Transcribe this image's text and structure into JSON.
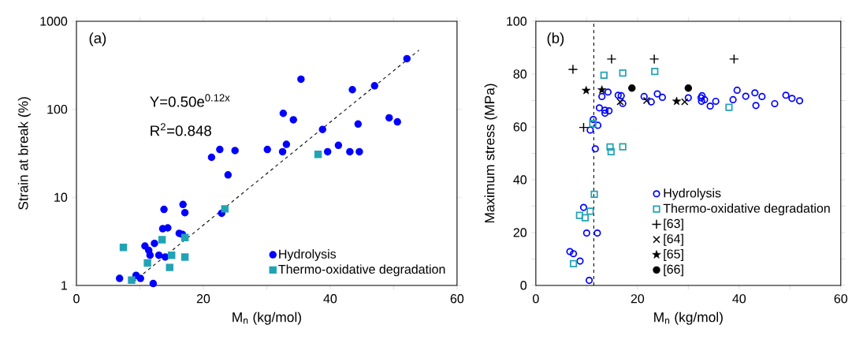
{
  "chart_data": [
    {
      "type": "scatter",
      "xlabel": "M$_{n}$ (kg/mol)",
      "ylabel": "Strain at break (%)",
      "log": "y",
      "xlim": [
        0,
        60
      ],
      "xticks": [
        0,
        {
          "value": 10,
          "label": null
        },
        20,
        {
          "value": 30,
          "label": null
        },
        40,
        {
          "value": 50,
          "label": null
        },
        60
      ],
      "ylim": [
        1,
        1000
      ],
      "yticks": [
        1,
        10,
        100,
        1000
      ],
      "legend": "bottom right",
      "annotations": [
        "(a)",
        "Y=0.50e$^{0.12x}$",
        "R$^{2}$=0.848"
      ],
      "series": [
        {
          "name": "Hydrolysis",
          "color": "#0000ff",
          "marker": "circle",
          "x": [
            52.1,
            35.4,
            43.5,
            47.0,
            32.6,
            34.2,
            49.3,
            50.6,
            44.4,
            38.8,
            33.1,
            41.3,
            32.5,
            39.6,
            43.1,
            44.6,
            30.1,
            22.6,
            25.0,
            21.3,
            23.9,
            22.9,
            13.8,
            16.8,
            17.1,
            13.6,
            14.4,
            16.2,
            16.7,
            12.3,
            10.8,
            11.4,
            11.6,
            13.0,
            14.0,
            6.8,
            9.4,
            10.1,
            12.1
          ],
          "values": [
            376,
            220,
            167,
            185,
            90,
            76,
            80,
            72,
            68,
            59,
            40,
            39,
            33,
            33,
            33,
            33,
            35,
            35,
            34,
            28.5,
            18,
            6.6,
            7.3,
            8.3,
            6.7,
            4.4,
            4.5,
            3.9,
            3.8,
            3.0,
            2.8,
            2.5,
            2.2,
            2.2,
            2.1,
            1.2,
            1.3,
            1.2,
            1.05
          ]
        },
        {
          "name": "Thermo-oxidative degradation",
          "color": "#22a3b5",
          "marker": "square",
          "x": [
            38.1,
            23.4,
            17.1,
            13.5,
            7.4,
            15.0,
            17.1,
            11.2,
            14.7,
            8.7
          ],
          "values": [
            30.8,
            7.4,
            3.5,
            3.3,
            2.7,
            2.2,
            2.1,
            1.8,
            1.6,
            1.15
          ]
        },
        {
          "type": "line",
          "color": "#000000",
          "marker": "none",
          "line_style": "dashed",
          "x": [
            9.0,
            54.0
          ],
          "values": [
            1.1,
            470
          ]
        }
      ]
    },
    {
      "type": "scatter",
      "xlabel": "M$_{n}$ (kg/mol)",
      "ylabel": "Maximum stress (MPa)",
      "xlim": [
        0,
        60
      ],
      "xticks": [
        0,
        {
          "value": 10,
          "label": null
        },
        20,
        {
          "value": 30,
          "label": null
        },
        40,
        {
          "value": 50,
          "label": null
        },
        60
      ],
      "ylim": [
        0,
        100
      ],
      "yticks": [
        0,
        {
          "value": 10,
          "label": null
        },
        20,
        {
          "value": 30,
          "label": null
        },
        40,
        {
          "value": 50,
          "label": null
        },
        60,
        {
          "value": 70,
          "label": null
        },
        80,
        {
          "value": 90,
          "label": null
        },
        100
      ],
      "legend": "bottom right",
      "annotations": [
        "(b)"
      ],
      "ref_lines": [
        {
          "axis": "x",
          "value": 11.4,
          "color": "#000000",
          "line_style": "dashed"
        }
      ],
      "series": [
        {
          "name": "Hydrolysis",
          "color": "#0000ff",
          "marker": "circle",
          "x": [
            14.2,
            13.0,
            16.2,
            16.8,
            17.1,
            12.5,
            13.6,
            14.4,
            13.6,
            11.3,
            12.2,
            10.7,
            11.7,
            21.3,
            22.7,
            23.9,
            24.9,
            30.0,
            32.5,
            32.7,
            32.6,
            33.2,
            34.3,
            35.4,
            38.8,
            39.6,
            41.3,
            43.1,
            43.3,
            44.5,
            47.0,
            49.2,
            50.4,
            51.9,
            9.4,
            10.0,
            12.1,
            6.7,
            7.4,
            8.7,
            10.5
          ],
          "values": [
            73.2,
            71.5,
            72.0,
            71.8,
            68.9,
            67.2,
            66.3,
            66.1,
            65.2,
            62.8,
            60.6,
            58.8,
            51.7,
            71.5,
            69.5,
            72.5,
            71.2,
            71.0,
            71.0,
            71.8,
            69.7,
            70.3,
            67.9,
            69.7,
            70.3,
            73.9,
            71.6,
            72.9,
            68.1,
            71.5,
            68.8,
            72.0,
            70.8,
            69.9,
            29.5,
            19.8,
            19.8,
            12.8,
            12.0,
            9.2,
            1.9
          ]
        },
        {
          "name": "Thermo-oxidative degradation",
          "color": "#22a3b5",
          "marker": "square",
          "x": [
            13.4,
            17.1,
            23.4,
            38.0,
            11.2,
            14.6,
            17.1,
            14.8,
            11.5,
            10.7,
            8.6,
            9.7,
            7.4
          ],
          "values": [
            79.6,
            80.4,
            81.0,
            67.4,
            61.3,
            52.4,
            52.5,
            50.6,
            34.5,
            28.1,
            26.5,
            25.6,
            8.2
          ]
        },
        {
          "name": "[63]",
          "color": "#000000",
          "marker": "plus",
          "x": [
            7.3,
            14.9,
            23.3,
            39.0,
            9.4
          ],
          "values": [
            81.8,
            85.7,
            85.7,
            85.7,
            59.8
          ]
        },
        {
          "name": "[64]",
          "color": "#000000",
          "marker": "cross",
          "x": [
            16.6,
            21.8,
            29.3
          ],
          "values": [
            69.5,
            70.0,
            69.5
          ]
        },
        {
          "name": "[65]",
          "color": "#000000",
          "marker": "star",
          "x": [
            9.9,
            13.0,
            27.7
          ],
          "values": [
            73.8,
            74.0,
            69.7
          ]
        },
        {
          "name": "[66]",
          "color": "#000000",
          "marker": "circle",
          "x": [
            18.9,
            30.0
          ],
          "values": [
            74.7,
            74.7
          ]
        }
      ]
    }
  ]
}
